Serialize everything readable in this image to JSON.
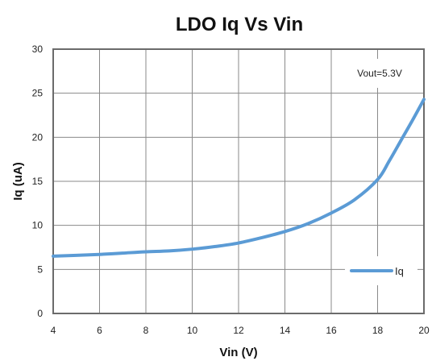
{
  "chart_data": {
    "type": "line",
    "title": "LDO Iq Vs Vin",
    "xlabel": "Vin (V)",
    "ylabel": "Iq (uA)",
    "xlim": [
      4,
      20
    ],
    "ylim": [
      0,
      30
    ],
    "xticks": [
      4,
      6,
      8,
      10,
      12,
      14,
      16,
      18,
      20
    ],
    "yticks": [
      0,
      5,
      10,
      15,
      20,
      25,
      30
    ],
    "grid": true,
    "legend": {
      "position": "bottom-right",
      "entries": [
        "Iq"
      ]
    },
    "annotation": "Vout=5.3V",
    "series": [
      {
        "name": "Iq",
        "color": "#5B9BD5",
        "x": [
          4,
          5,
          6,
          7,
          8,
          9,
          10,
          11,
          12,
          13,
          14,
          15,
          16,
          17,
          18,
          18.5,
          19,
          19.5,
          20
        ],
        "y": [
          6.5,
          6.6,
          6.7,
          6.85,
          7.0,
          7.1,
          7.3,
          7.6,
          8.0,
          8.6,
          9.3,
          10.2,
          11.4,
          12.9,
          15.2,
          17.3,
          19.6,
          21.9,
          24.3
        ]
      }
    ]
  }
}
